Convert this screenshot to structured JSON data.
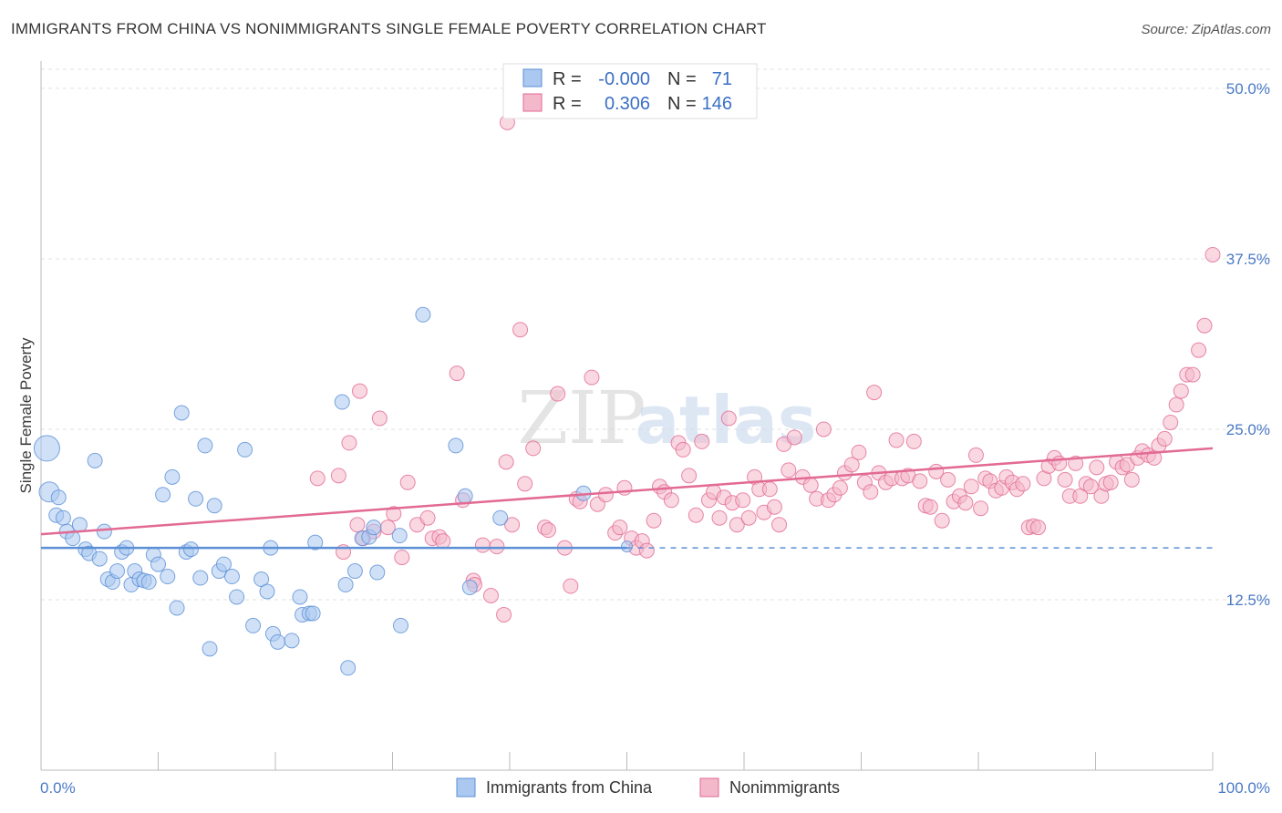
{
  "title": "IMMIGRANTS FROM CHINA VS NONIMMIGRANTS SINGLE FEMALE POVERTY CORRELATION CHART",
  "source": "Source: ZipAtlas.com",
  "watermark": {
    "zip": "ZIP",
    "atlas": "atlas"
  },
  "colors": {
    "blue": "#5b8fd6",
    "blue_fill": "#aac8f0",
    "pink": "#e26a93",
    "pink_fill": "#f4b8cb",
    "tick": "#4a7ac7"
  },
  "legend_box": {
    "rows": [
      {
        "r_label": "R =",
        "r_value": "-0.000",
        "n_label": "N =",
        "n_value": "71"
      },
      {
        "r_label": "R =",
        "r_value": "0.306",
        "n_label": "N =",
        "n_value": "146"
      }
    ]
  },
  "chart_data": {
    "type": "scatter",
    "xlabel": "",
    "ylabel": "Single Female Poverty",
    "xlim": [
      0,
      100
    ],
    "ylim": [
      0,
      52
    ],
    "x_tick_labels": [
      "0.0%",
      "100.0%"
    ],
    "y_ticks": [
      12.5,
      25.0,
      37.5,
      50.0
    ],
    "y_tick_labels": [
      "12.5%",
      "25.0%",
      "37.5%",
      "50.0%"
    ],
    "grid": true,
    "legend_position": "bottom",
    "series": [
      {
        "name": "Immigrants from China",
        "color": "#5b8fd6",
        "trend": {
          "x0": 0,
          "y0": 16.3,
          "x1": 50,
          "y1": 16.3,
          "dash_to": 100
        },
        "points": [
          [
            0.5,
            23.6,
            14
          ],
          [
            0.7,
            20.4,
            11
          ],
          [
            1.3,
            18.7,
            8
          ],
          [
            1.5,
            20.0,
            8
          ],
          [
            1.9,
            18.5,
            8
          ],
          [
            2.2,
            17.5,
            8
          ],
          [
            2.7,
            17.0,
            8
          ],
          [
            3.3,
            18.0,
            8
          ],
          [
            3.8,
            16.2,
            8
          ],
          [
            4.1,
            15.9,
            8
          ],
          [
            4.6,
            22.7,
            8
          ],
          [
            5.0,
            15.5,
            8
          ],
          [
            5.4,
            17.5,
            8
          ],
          [
            5.7,
            14.0,
            8
          ],
          [
            6.1,
            13.8,
            8
          ],
          [
            6.5,
            14.6,
            8
          ],
          [
            6.9,
            16.0,
            8
          ],
          [
            7.3,
            16.3,
            8
          ],
          [
            7.7,
            13.6,
            8
          ],
          [
            8.0,
            14.6,
            8
          ],
          [
            8.4,
            14.0,
            8
          ],
          [
            8.8,
            13.9,
            8
          ],
          [
            9.2,
            13.8,
            8
          ],
          [
            9.6,
            15.8,
            8
          ],
          [
            10.0,
            15.1,
            8
          ],
          [
            10.4,
            20.2,
            8
          ],
          [
            10.8,
            14.2,
            8
          ],
          [
            11.2,
            21.5,
            8
          ],
          [
            11.6,
            11.9,
            8
          ],
          [
            12.0,
            26.2,
            8
          ],
          [
            12.4,
            16.0,
            8
          ],
          [
            12.8,
            16.2,
            8
          ],
          [
            13.2,
            19.9,
            8
          ],
          [
            13.6,
            14.1,
            8
          ],
          [
            14.0,
            23.8,
            8
          ],
          [
            14.4,
            8.9,
            8
          ],
          [
            14.8,
            19.4,
            8
          ],
          [
            15.2,
            14.6,
            8
          ],
          [
            15.6,
            15.1,
            8
          ],
          [
            16.3,
            14.2,
            8
          ],
          [
            16.7,
            12.7,
            8
          ],
          [
            17.4,
            23.5,
            8
          ],
          [
            18.1,
            10.6,
            8
          ],
          [
            18.8,
            14.0,
            8
          ],
          [
            19.3,
            13.1,
            8
          ],
          [
            19.6,
            16.3,
            8
          ],
          [
            19.8,
            10.0,
            8
          ],
          [
            20.2,
            9.4,
            8
          ],
          [
            21.4,
            9.5,
            8
          ],
          [
            22.1,
            12.7,
            8
          ],
          [
            22.3,
            11.4,
            8
          ],
          [
            22.9,
            11.5,
            8
          ],
          [
            23.2,
            11.5,
            8
          ],
          [
            23.4,
            16.7,
            8
          ],
          [
            25.7,
            27.0,
            8
          ],
          [
            26.0,
            13.6,
            8
          ],
          [
            26.2,
            7.5,
            8
          ],
          [
            26.8,
            14.6,
            8
          ],
          [
            27.4,
            17.0,
            8
          ],
          [
            28.0,
            17.1,
            8
          ],
          [
            28.4,
            17.8,
            8
          ],
          [
            28.7,
            14.5,
            8
          ],
          [
            30.6,
            17.2,
            8
          ],
          [
            30.7,
            10.6,
            8
          ],
          [
            32.6,
            33.4,
            8
          ],
          [
            35.4,
            23.8,
            8
          ],
          [
            36.2,
            20.1,
            8
          ],
          [
            36.6,
            13.4,
            8
          ],
          [
            39.2,
            18.5,
            8
          ],
          [
            46.3,
            20.3,
            8
          ],
          [
            50.0,
            16.4,
            6
          ]
        ]
      },
      {
        "name": "Nonimmigrants",
        "color": "#e26a93",
        "trend": {
          "x0": 0,
          "y0": 17.3,
          "x1": 100,
          "y1": 23.6
        },
        "points": [
          [
            23.6,
            21.4,
            8
          ],
          [
            25.4,
            21.6,
            8
          ],
          [
            25.8,
            16.0,
            8
          ],
          [
            26.3,
            24.0,
            8
          ],
          [
            27.0,
            18.0,
            8
          ],
          [
            27.2,
            27.8,
            8
          ],
          [
            27.5,
            17.0,
            8
          ],
          [
            28.4,
            17.5,
            8
          ],
          [
            28.9,
            25.8,
            8
          ],
          [
            29.6,
            17.8,
            8
          ],
          [
            30.1,
            18.8,
            8
          ],
          [
            30.8,
            15.6,
            8
          ],
          [
            31.3,
            21.1,
            8
          ],
          [
            32.1,
            18.0,
            8
          ],
          [
            33.0,
            18.5,
            8
          ],
          [
            33.4,
            17.0,
            8
          ],
          [
            34.0,
            17.1,
            8
          ],
          [
            34.3,
            16.8,
            8
          ],
          [
            35.5,
            29.1,
            8
          ],
          [
            36.0,
            19.8,
            8
          ],
          [
            36.9,
            13.9,
            8
          ],
          [
            37.0,
            13.6,
            8
          ],
          [
            37.7,
            16.5,
            8
          ],
          [
            38.4,
            12.8,
            8
          ],
          [
            38.9,
            16.4,
            8
          ],
          [
            39.5,
            11.4,
            8
          ],
          [
            39.7,
            22.6,
            8
          ],
          [
            40.2,
            18.0,
            8
          ],
          [
            40.9,
            32.3,
            8
          ],
          [
            41.3,
            21.0,
            8
          ],
          [
            42.0,
            23.6,
            8
          ],
          [
            43.0,
            17.8,
            8
          ],
          [
            43.3,
            17.6,
            8
          ],
          [
            44.1,
            27.6,
            8
          ],
          [
            44.7,
            16.3,
            8
          ],
          [
            45.2,
            13.5,
            8
          ],
          [
            45.7,
            19.9,
            8
          ],
          [
            46.0,
            19.7,
            8
          ],
          [
            47.0,
            28.8,
            8
          ],
          [
            47.5,
            19.5,
            8
          ],
          [
            48.2,
            20.2,
            8
          ],
          [
            49.0,
            17.4,
            8
          ],
          [
            49.4,
            17.8,
            8
          ],
          [
            49.8,
            20.7,
            8
          ],
          [
            50.4,
            17.0,
            8
          ],
          [
            50.8,
            16.3,
            8
          ],
          [
            51.3,
            16.8,
            8
          ],
          [
            51.7,
            16.1,
            8
          ],
          [
            52.3,
            18.3,
            8
          ],
          [
            52.8,
            20.8,
            8
          ],
          [
            53.2,
            20.4,
            8
          ],
          [
            53.8,
            19.8,
            8
          ],
          [
            54.4,
            24.0,
            8
          ],
          [
            54.8,
            23.5,
            8
          ],
          [
            55.3,
            21.6,
            8
          ],
          [
            55.9,
            18.7,
            8
          ],
          [
            56.4,
            24.1,
            8
          ],
          [
            57.0,
            19.8,
            8
          ],
          [
            57.4,
            20.4,
            8
          ],
          [
            57.9,
            18.5,
            8
          ],
          [
            58.3,
            20.0,
            8
          ],
          [
            58.7,
            25.8,
            8
          ],
          [
            59.0,
            19.6,
            8
          ],
          [
            59.4,
            18.0,
            8
          ],
          [
            59.9,
            19.8,
            8
          ],
          [
            60.4,
            18.5,
            8
          ],
          [
            60.9,
            21.5,
            8
          ],
          [
            61.3,
            20.6,
            8
          ],
          [
            61.7,
            18.9,
            8
          ],
          [
            62.2,
            20.6,
            8
          ],
          [
            62.6,
            19.3,
            8
          ],
          [
            63.0,
            18.0,
            8
          ],
          [
            63.4,
            23.9,
            8
          ],
          [
            63.8,
            22.0,
            8
          ],
          [
            64.3,
            24.4,
            8
          ],
          [
            65.0,
            21.5,
            8
          ],
          [
            65.7,
            20.9,
            8
          ],
          [
            66.2,
            19.9,
            8
          ],
          [
            66.8,
            25.0,
            8
          ],
          [
            67.2,
            19.8,
            8
          ],
          [
            67.7,
            20.2,
            8
          ],
          [
            68.2,
            20.7,
            8
          ],
          [
            68.6,
            21.8,
            8
          ],
          [
            69.2,
            22.4,
            8
          ],
          [
            69.8,
            23.3,
            8
          ],
          [
            70.3,
            21.1,
            8
          ],
          [
            70.8,
            20.4,
            8
          ],
          [
            71.1,
            27.7,
            8
          ],
          [
            71.5,
            21.8,
            8
          ],
          [
            72.1,
            21.1,
            8
          ],
          [
            72.6,
            21.4,
            8
          ],
          [
            73.0,
            24.2,
            8
          ],
          [
            73.5,
            21.4,
            8
          ],
          [
            74.0,
            21.6,
            8
          ],
          [
            74.5,
            24.1,
            8
          ],
          [
            75.0,
            21.2,
            8
          ],
          [
            75.5,
            19.4,
            8
          ],
          [
            75.9,
            19.3,
            8
          ],
          [
            76.4,
            21.9,
            8
          ],
          [
            76.9,
            18.3,
            8
          ],
          [
            77.4,
            21.3,
            8
          ],
          [
            77.9,
            19.7,
            8
          ],
          [
            78.4,
            20.1,
            8
          ],
          [
            78.9,
            19.6,
            8
          ],
          [
            79.4,
            20.8,
            8
          ],
          [
            79.8,
            23.1,
            8
          ],
          [
            80.2,
            19.2,
            8
          ],
          [
            80.6,
            21.4,
            8
          ],
          [
            81.0,
            21.2,
            8
          ],
          [
            81.5,
            20.5,
            8
          ],
          [
            82.0,
            20.7,
            8
          ],
          [
            82.4,
            21.5,
            8
          ],
          [
            82.9,
            21.1,
            8
          ],
          [
            83.3,
            20.6,
            8
          ],
          [
            83.8,
            21.0,
            8
          ],
          [
            84.3,
            17.8,
            8
          ],
          [
            84.7,
            17.9,
            8
          ],
          [
            85.1,
            17.8,
            8
          ],
          [
            85.6,
            21.4,
            8
          ],
          [
            86.0,
            22.3,
            8
          ],
          [
            86.5,
            22.9,
            8
          ],
          [
            86.9,
            22.5,
            8
          ],
          [
            87.4,
            21.3,
            8
          ],
          [
            87.8,
            20.1,
            8
          ],
          [
            88.3,
            22.5,
            8
          ],
          [
            88.7,
            20.1,
            8
          ],
          [
            89.2,
            21.0,
            8
          ],
          [
            89.6,
            20.8,
            8
          ],
          [
            90.1,
            22.2,
            8
          ],
          [
            90.5,
            20.1,
            8
          ],
          [
            90.9,
            21.0,
            8
          ],
          [
            91.3,
            21.1,
            8
          ],
          [
            91.8,
            22.6,
            8
          ],
          [
            92.3,
            22.2,
            8
          ],
          [
            92.7,
            22.4,
            8
          ],
          [
            93.1,
            21.3,
            8
          ],
          [
            93.6,
            22.9,
            8
          ],
          [
            94.0,
            23.4,
            8
          ],
          [
            94.5,
            23.1,
            8
          ],
          [
            95.0,
            22.9,
            8
          ],
          [
            95.4,
            23.8,
            8
          ],
          [
            95.9,
            24.3,
            8
          ],
          [
            96.4,
            25.5,
            8
          ],
          [
            96.9,
            26.8,
            8
          ],
          [
            97.3,
            27.8,
            8
          ],
          [
            97.8,
            29.0,
            8
          ],
          [
            98.3,
            29.0,
            8
          ],
          [
            98.8,
            30.8,
            8
          ],
          [
            99.3,
            32.6,
            8
          ],
          [
            100.0,
            37.8,
            8
          ]
        ]
      }
    ],
    "outlier_points": [
      {
        "series": 1,
        "x": 39.8,
        "y": 47.5,
        "r": 8
      }
    ]
  },
  "bottom_legend": {
    "items": [
      "Immigrants from China",
      "Nonimmigrants"
    ]
  }
}
